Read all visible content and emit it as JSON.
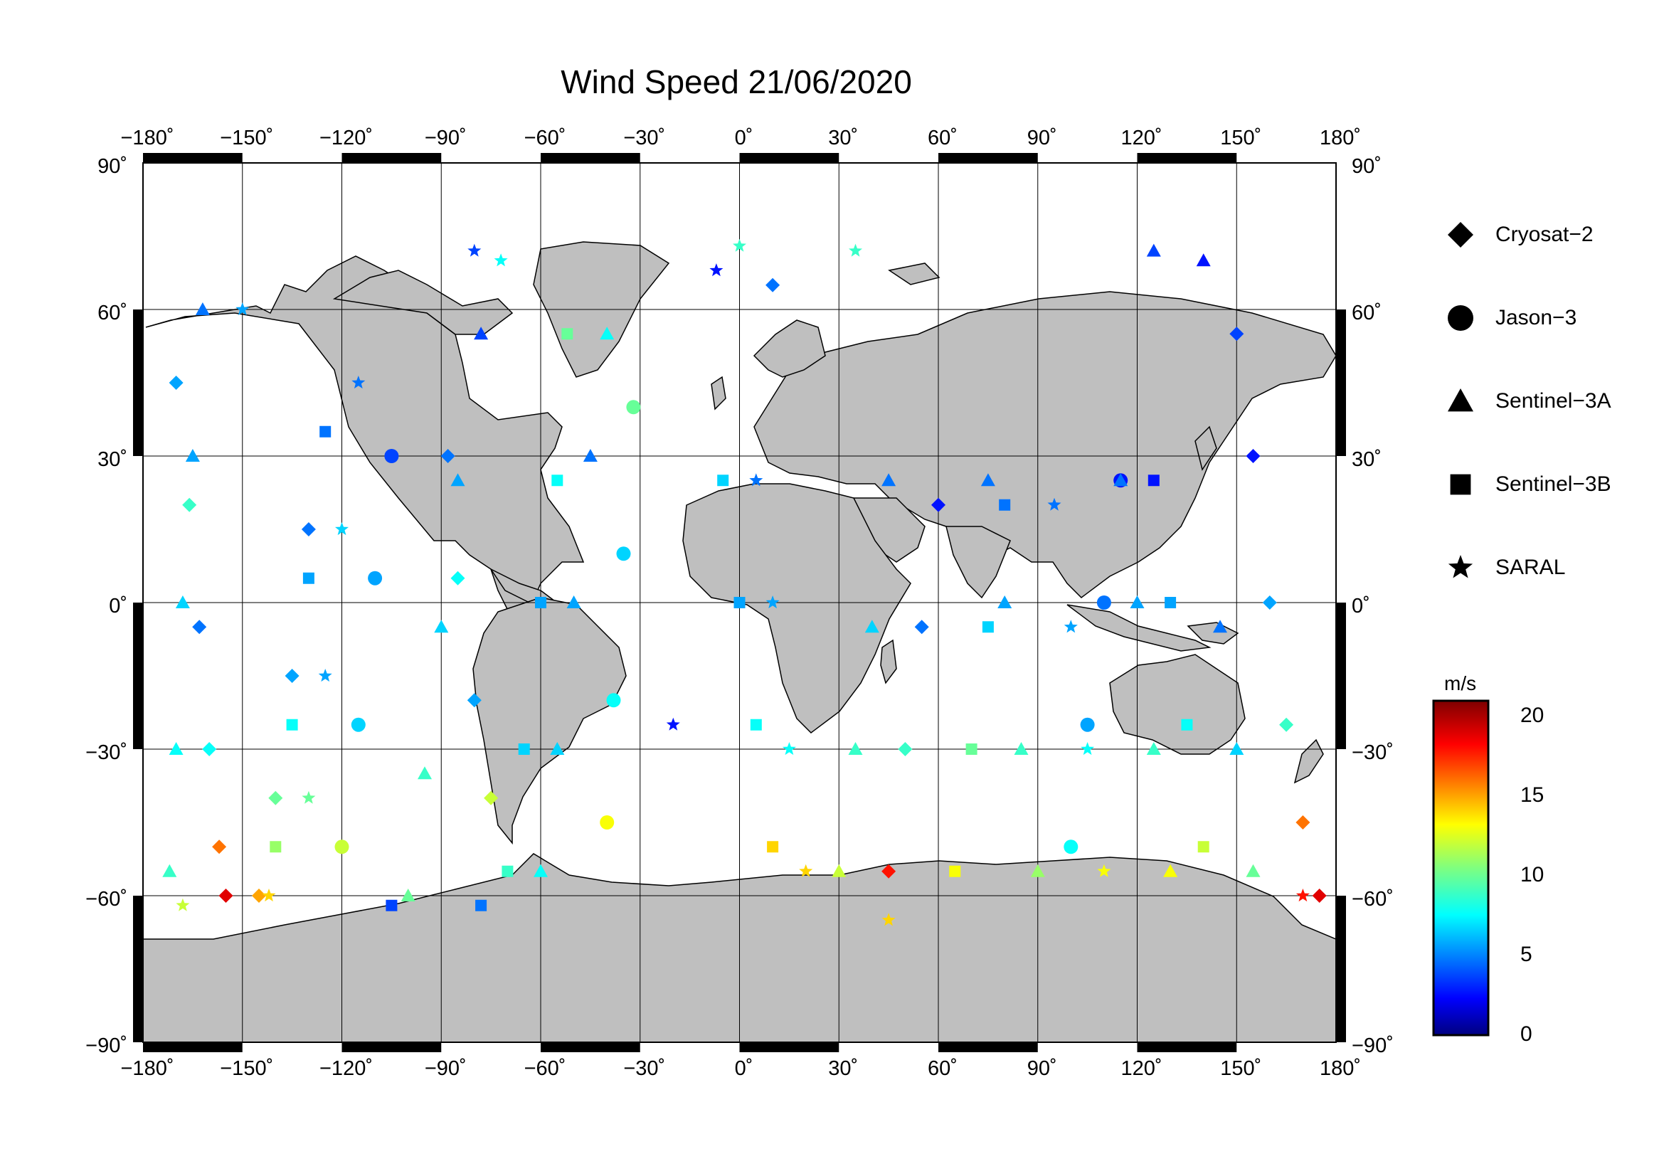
{
  "title": "Wind Speed 21/06/2020",
  "map": {
    "extent": {
      "lon": [
        -180,
        180
      ],
      "lat": [
        -90,
        90
      ]
    },
    "lon_ticks": [
      -180,
      -150,
      -120,
      -90,
      -60,
      -30,
      0,
      30,
      60,
      90,
      120,
      150,
      180
    ],
    "lat_ticks": [
      -90,
      -60,
      -30,
      0,
      30,
      60,
      90
    ],
    "degree_symbol": "˚",
    "grid": true,
    "land_color": "#bfbfbf"
  },
  "legend": {
    "placement": "right",
    "items": [
      {
        "label": "Cryosat−2",
        "icon": "diamond-icon"
      },
      {
        "label": "Jason−3",
        "icon": "circle-icon"
      },
      {
        "label": "Sentinel−3A",
        "icon": "triangle-icon"
      },
      {
        "label": "Sentinel−3B",
        "icon": "square-icon"
      },
      {
        "label": "SARAL",
        "icon": "star-icon"
      }
    ]
  },
  "colorbar": {
    "unit": "m/s",
    "range": [
      0,
      21
    ],
    "ticks": [
      0,
      5,
      10,
      15,
      20
    ],
    "colormap": "jet"
  },
  "chart_data": {
    "type": "scatter",
    "title": "Wind Speed 21/06/2020",
    "x_label": "",
    "y_label": "",
    "x_range": [
      -180,
      180
    ],
    "y_range": [
      -90,
      90
    ],
    "value_unit": "m/s",
    "value_range": [
      0,
      21
    ],
    "series": [
      {
        "name": "Cryosat−2",
        "points": [
          [
            -155,
            -60,
            19
          ],
          [
            -157,
            -50,
            16
          ],
          [
            -160,
            -30,
            8
          ],
          [
            -163,
            -5,
            5
          ],
          [
            -166,
            20,
            9
          ],
          [
            -170,
            45,
            6
          ],
          [
            -75,
            -40,
            12
          ],
          [
            -80,
            -20,
            6
          ],
          [
            -85,
            5,
            8
          ],
          [
            -88,
            30,
            5
          ],
          [
            175,
            -60,
            19
          ],
          [
            170,
            -45,
            16
          ],
          [
            165,
            -25,
            9
          ],
          [
            160,
            0,
            6
          ],
          [
            155,
            30,
            3
          ],
          [
            150,
            55,
            4
          ],
          [
            45,
            -55,
            18
          ],
          [
            50,
            -30,
            9
          ],
          [
            55,
            -5,
            5
          ],
          [
            60,
            20,
            3
          ],
          [
            10,
            65,
            5
          ],
          [
            -145,
            -60,
            15
          ],
          [
            -140,
            -40,
            10
          ],
          [
            -135,
            -15,
            6
          ],
          [
            -130,
            15,
            5
          ]
        ]
      },
      {
        "name": "Jason−3",
        "points": [
          [
            -120,
            -50,
            12
          ],
          [
            -115,
            -25,
            7
          ],
          [
            -110,
            5,
            6
          ],
          [
            -105,
            30,
            4
          ],
          [
            100,
            -50,
            8
          ],
          [
            105,
            -25,
            6
          ],
          [
            110,
            0,
            5
          ],
          [
            115,
            25,
            3
          ],
          [
            -40,
            -45,
            13
          ],
          [
            -38,
            -20,
            8
          ],
          [
            -35,
            10,
            7
          ],
          [
            -32,
            40,
            10
          ]
        ]
      },
      {
        "name": "Sentinel−3A",
        "points": [
          [
            -172,
            -55,
            9
          ],
          [
            -170,
            -30,
            8
          ],
          [
            -168,
            0,
            7
          ],
          [
            -165,
            30,
            6
          ],
          [
            -162,
            60,
            5
          ],
          [
            -100,
            -60,
            10
          ],
          [
            -95,
            -35,
            9
          ],
          [
            -90,
            -5,
            7
          ],
          [
            -85,
            25,
            6
          ],
          [
            -78,
            55,
            4
          ],
          [
            -60,
            -55,
            8
          ],
          [
            -55,
            -30,
            7
          ],
          [
            -50,
            0,
            6
          ],
          [
            -45,
            30,
            5
          ],
          [
            -40,
            55,
            8
          ],
          [
            30,
            -55,
            12
          ],
          [
            35,
            -30,
            9
          ],
          [
            40,
            -5,
            7
          ],
          [
            45,
            25,
            5
          ],
          [
            90,
            -55,
            11
          ],
          [
            85,
            -30,
            9
          ],
          [
            80,
            0,
            6
          ],
          [
            75,
            25,
            5
          ],
          [
            130,
            -55,
            13
          ],
          [
            125,
            -30,
            9
          ],
          [
            120,
            0,
            6
          ],
          [
            115,
            25,
            5
          ],
          [
            140,
            70,
            3
          ],
          [
            125,
            72,
            4
          ],
          [
            155,
            -55,
            10
          ],
          [
            150,
            -30,
            7
          ],
          [
            145,
            -5,
            5
          ]
        ]
      },
      {
        "name": "Sentinel−3B",
        "points": [
          [
            -140,
            -50,
            11
          ],
          [
            -135,
            -25,
            8
          ],
          [
            -130,
            5,
            6
          ],
          [
            -125,
            35,
            5
          ],
          [
            -70,
            -55,
            9
          ],
          [
            -65,
            -30,
            7
          ],
          [
            -60,
            0,
            6
          ],
          [
            -55,
            25,
            8
          ],
          [
            -52,
            55,
            10
          ],
          [
            10,
            -50,
            14
          ],
          [
            5,
            -25,
            8
          ],
          [
            0,
            0,
            6
          ],
          [
            -5,
            25,
            7
          ],
          [
            65,
            -55,
            13
          ],
          [
            70,
            -30,
            10
          ],
          [
            75,
            -5,
            7
          ],
          [
            80,
            20,
            5
          ],
          [
            140,
            -50,
            12
          ],
          [
            135,
            -25,
            8
          ],
          [
            130,
            0,
            6
          ],
          [
            125,
            25,
            3
          ],
          [
            -105,
            -62,
            4
          ],
          [
            -78,
            -62,
            5
          ]
        ]
      },
      {
        "name": "SARAL",
        "points": [
          [
            -168,
            -62,
            12
          ],
          [
            -142,
            -60,
            14
          ],
          [
            -150,
            60,
            6
          ],
          [
            -80,
            72,
            4
          ],
          [
            -72,
            70,
            8
          ],
          [
            -20,
            -25,
            3
          ],
          [
            -7,
            68,
            3
          ],
          [
            0,
            73,
            9
          ],
          [
            35,
            72,
            9
          ],
          [
            45,
            -65,
            14
          ],
          [
            170,
            -60,
            18
          ],
          [
            -130,
            -40,
            10
          ],
          [
            -125,
            -15,
            6
          ],
          [
            -120,
            15,
            7
          ],
          [
            -115,
            45,
            5
          ],
          [
            20,
            -55,
            14
          ],
          [
            15,
            -30,
            8
          ],
          [
            10,
            0,
            6
          ],
          [
            5,
            25,
            5
          ],
          [
            110,
            -55,
            13
          ],
          [
            105,
            -30,
            8
          ],
          [
            100,
            -5,
            6
          ],
          [
            95,
            20,
            5
          ]
        ]
      }
    ]
  }
}
